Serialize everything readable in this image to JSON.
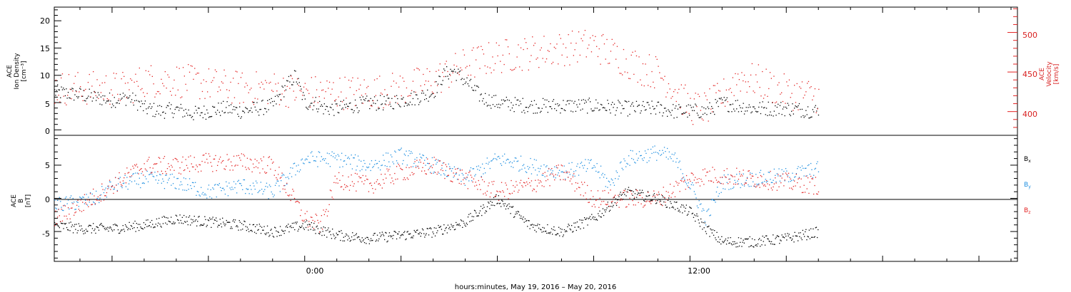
{
  "colors": {
    "black": "#000000",
    "red": "#e32222",
    "blue": "#1f8fe0"
  },
  "xlabel": "hours:minutes, May 19, 2016 – May 20, 2016",
  "chart_data": [
    {
      "type": "scatter",
      "panel": "top",
      "left_axis": {
        "label_lines": [
          "ACE",
          "Ion Density",
          "[cm⁻³]"
        ],
        "ticks": [
          "0",
          "5",
          "10",
          "15",
          "20"
        ],
        "ylim": [
          -1,
          22.5
        ]
      },
      "right_axis": {
        "label_lines": [
          "ACE",
          "Velocity",
          "[km/s]"
        ],
        "ticks": [
          "400",
          "450",
          "500"
        ],
        "ylim": [
          370,
          532
        ]
      },
      "x_ticks": [
        "0:00",
        "12:00"
      ],
      "x_unit": "hours",
      "xlim": [
        -7.8,
        22.2
      ],
      "series": [
        {
          "name": "",
          "color": "black",
          "axis": "left",
          "x": [
            -7.8,
            -7,
            -6.5,
            -6,
            -5.5,
            -5.2,
            -5,
            -4.5,
            -4,
            -3.5,
            -3,
            -2.5,
            -2,
            -1.5,
            -1,
            -0.6,
            -0.3,
            0,
            0.3,
            0.6,
            1,
            1.5,
            2,
            2.5,
            3,
            3.5,
            4,
            4.3,
            4.6,
            5,
            5.5,
            6,
            7,
            8,
            9,
            10,
            11,
            11.5,
            12,
            12.5,
            13,
            13.5,
            14,
            15,
            16
          ],
          "y": [
            7,
            6.5,
            6,
            5.5,
            6,
            5,
            4,
            3.5,
            3.8,
            3,
            3.5,
            4,
            3.5,
            4,
            4.5,
            8,
            10,
            5,
            5,
            4,
            4,
            4.5,
            5,
            5,
            5.5,
            6,
            7,
            10,
            11,
            9,
            6,
            5,
            4.5,
            4.5,
            4.5,
            4,
            4,
            3.5,
            3.5,
            3.5,
            5,
            4.5,
            4,
            4,
            3.5
          ]
        },
        {
          "name": "",
          "color": "red",
          "axis": "right",
          "x": [
            -7.8,
            -7,
            -6,
            -5.5,
            -5,
            -4,
            -3,
            -2,
            -1,
            0,
            1,
            2,
            3,
            4,
            5,
            6,
            7,
            8,
            9,
            10,
            10.5,
            11,
            11.5,
            12,
            12.5,
            13,
            13.5,
            14,
            15,
            16
          ],
          "y": [
            430,
            430,
            430,
            430,
            440,
            440,
            435,
            430,
            430,
            425,
            425,
            425,
            430,
            440,
            460,
            470,
            475,
            480,
            485,
            465,
            455,
            450,
            430,
            405,
            405,
            420,
            445,
            440,
            425,
            420
          ]
        }
      ]
    },
    {
      "type": "scatter",
      "panel": "bottom",
      "left_axis": {
        "label_lines": [
          "ACE",
          "B",
          "[nT]"
        ],
        "ticks": [
          "-5",
          "0",
          "5"
        ],
        "ylim": [
          -9.5,
          9.5
        ]
      },
      "x_ticks": [
        "0:00",
        "12:00"
      ],
      "x_unit": "hours",
      "xlim": [
        -7.8,
        22.2
      ],
      "legend": [
        "Bx",
        "By",
        "Bz"
      ],
      "series": [
        {
          "name": "Bx",
          "color": "black",
          "x": [
            -7.8,
            -7,
            -6,
            -5,
            -4,
            -3,
            -2,
            -1,
            0,
            1,
            2,
            3,
            4,
            5,
            6,
            7,
            8,
            9,
            10,
            11,
            12,
            12.5,
            13,
            14,
            15,
            16
          ],
          "y": [
            -4,
            -4.5,
            -4.5,
            -4,
            -3,
            -3.5,
            -4,
            -5,
            -4,
            -5.5,
            -6,
            -5.5,
            -5,
            -3.5,
            0,
            -4,
            -5,
            -3,
            1,
            0,
            -2,
            -4.5,
            -6.5,
            -6.5,
            -6,
            -5
          ]
        },
        {
          "name": "By",
          "color": "blue",
          "x": [
            -7.8,
            -7,
            -6.5,
            -6,
            -5,
            -4,
            -3,
            -2,
            -1,
            0,
            1,
            2,
            3,
            4,
            5,
            6,
            7,
            8,
            9,
            9.5,
            10,
            11,
            11.5,
            12,
            12.5,
            13,
            14,
            15,
            16
          ],
          "y": [
            -1,
            -0.5,
            0,
            2,
            3,
            2.5,
            1,
            2,
            1,
            6,
            6,
            5,
            6.5,
            5,
            3,
            6,
            5,
            4,
            5,
            2,
            6,
            7,
            6,
            2,
            -3,
            2.5,
            3,
            3.5,
            4.5
          ]
        },
        {
          "name": "Bz",
          "color": "red",
          "x": [
            -7.8,
            -7,
            -6,
            -5,
            -4,
            -3,
            -2,
            -1,
            0,
            0.5,
            1,
            2,
            3,
            4,
            5,
            6,
            7,
            8,
            9,
            10,
            11,
            12,
            12.5,
            13,
            14,
            15,
            16
          ],
          "y": [
            -3,
            -1,
            2,
            5,
            5,
            5.5,
            5.5,
            5,
            -3,
            -4,
            3,
            2,
            4,
            5,
            3,
            1,
            2,
            4,
            0,
            0,
            0,
            3,
            3.5,
            3.5,
            3,
            2.5,
            2
          ]
        }
      ]
    }
  ]
}
